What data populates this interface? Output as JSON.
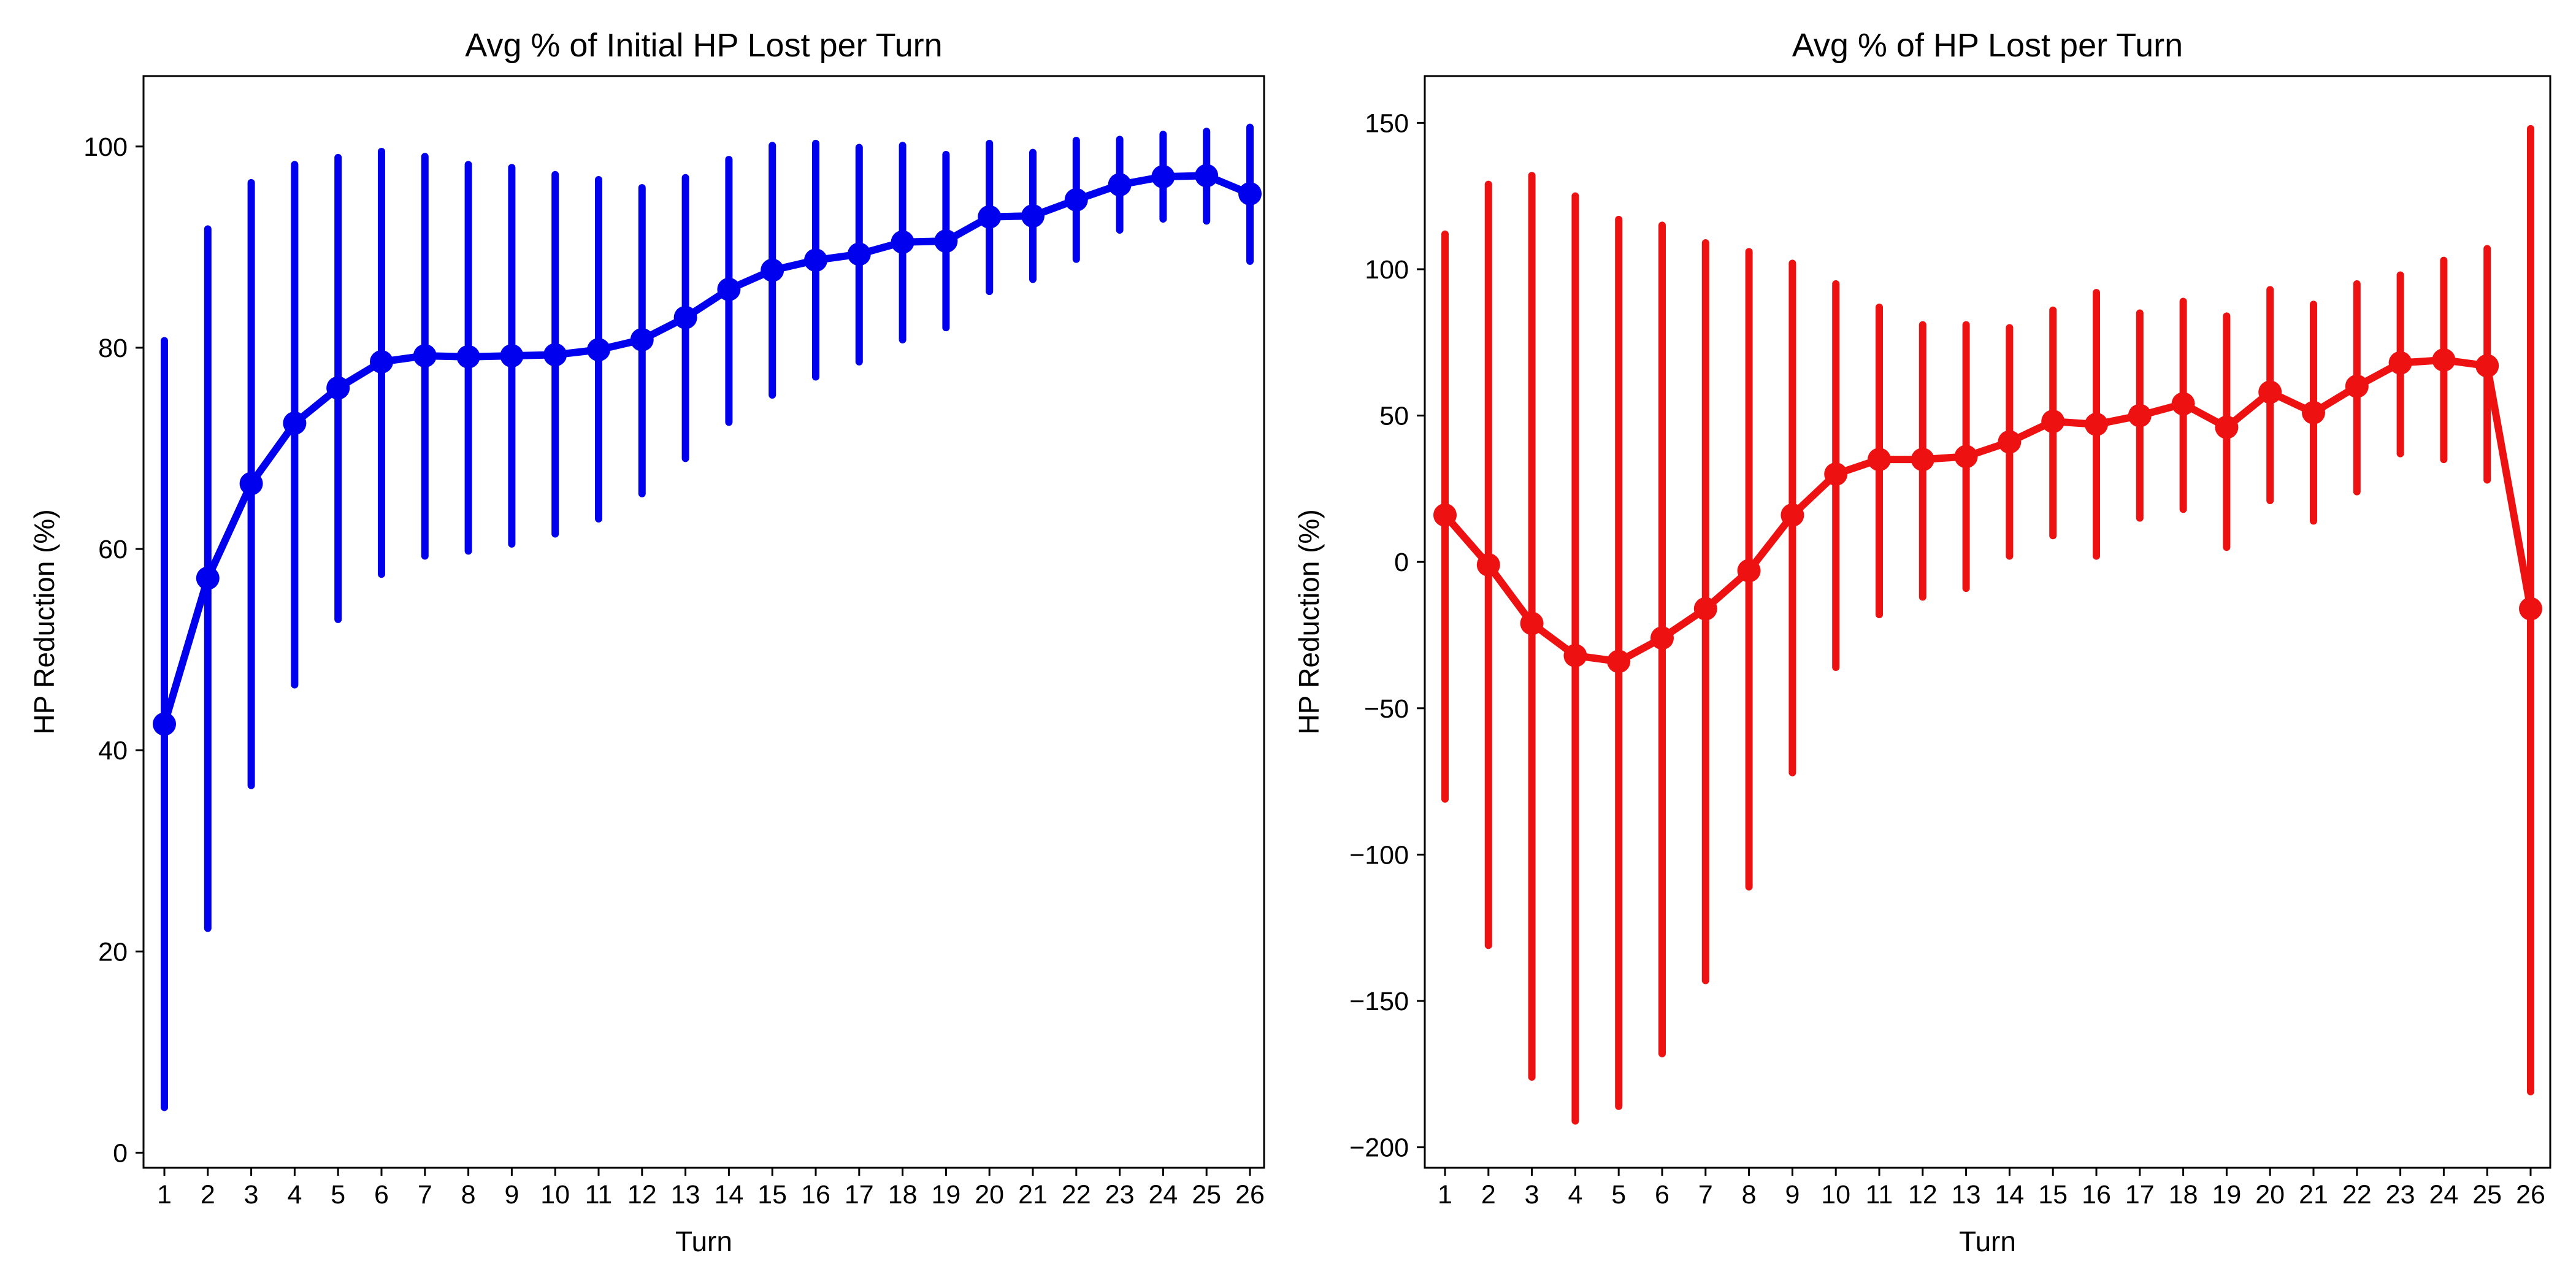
{
  "chart_data": [
    {
      "type": "line",
      "title": "Avg % of Initial HP Lost per Turn",
      "xlabel": "Turn",
      "ylabel": "HP Reduction (%)",
      "ylim": [
        -1.5,
        107
      ],
      "yticks": [
        0,
        20,
        40,
        60,
        80,
        100
      ],
      "grid": false,
      "color": "#0000ee",
      "categories": [
        "1",
        "2",
        "3",
        "4",
        "5",
        "6",
        "7",
        "8",
        "9",
        "10",
        "11",
        "12",
        "13",
        "14",
        "15",
        "16",
        "17",
        "18",
        "19",
        "20",
        "21",
        "22",
        "23",
        "24",
        "25",
        "26"
      ],
      "series": [
        {
          "values": [
            42.6,
            57.1,
            66.5,
            72.5,
            76.0,
            78.6,
            79.2,
            79.1,
            79.2,
            79.3,
            79.8,
            80.8,
            83.0,
            85.8,
            87.7,
            88.7,
            89.3,
            90.5,
            90.6,
            93.0,
            93.1,
            94.7,
            96.2,
            97.0,
            97.1,
            95.3
          ],
          "lower": [
            4.5,
            22.3,
            36.5,
            46.5,
            53.0,
            57.5,
            59.3,
            59.8,
            60.5,
            61.5,
            63.0,
            65.5,
            69.0,
            72.6,
            75.3,
            77.1,
            78.6,
            80.8,
            82.0,
            85.6,
            86.8,
            88.8,
            91.7,
            92.8,
            92.6,
            88.6
          ],
          "upper": [
            80.7,
            91.8,
            96.4,
            98.2,
            98.9,
            99.5,
            99.0,
            98.2,
            97.9,
            97.2,
            96.7,
            95.9,
            96.9,
            98.7,
            100.1,
            100.3,
            99.9,
            100.1,
            99.2,
            100.3,
            99.4,
            100.6,
            100.7,
            101.2,
            101.5,
            101.9
          ]
        }
      ]
    },
    {
      "type": "line",
      "title": "Avg % of HP Lost per Turn",
      "xlabel": "Turn",
      "ylabel": "HP Reduction (%)",
      "ylim": [
        -207,
        166
      ],
      "yticks": [
        -200,
        -150,
        -100,
        -50,
        0,
        50,
        100,
        150
      ],
      "grid": false,
      "color": "#ee1111",
      "categories": [
        "1",
        "2",
        "3",
        "4",
        "5",
        "6",
        "7",
        "8",
        "9",
        "10",
        "11",
        "12",
        "13",
        "14",
        "15",
        "16",
        "17",
        "18",
        "19",
        "20",
        "21",
        "22",
        "23",
        "24",
        "25",
        "26"
      ],
      "series": [
        {
          "values": [
            16,
            -1,
            -21,
            -32,
            -34,
            -26,
            -16,
            -3,
            16,
            30,
            35,
            35,
            36,
            41,
            48,
            47,
            50,
            54,
            46,
            58,
            51,
            60,
            68,
            69,
            67,
            -16
          ],
          "lower": [
            -81,
            -131,
            -176,
            -191,
            -186,
            -168,
            -143,
            -111,
            -72,
            -36,
            -18,
            -12,
            -9,
            2,
            9,
            2,
            15,
            18,
            5,
            21,
            14,
            24,
            37,
            35,
            28,
            -181
          ],
          "upper": [
            112,
            129,
            132,
            125,
            117,
            115,
            109,
            106,
            102,
            95,
            87,
            81,
            81,
            80,
            86,
            92,
            85,
            89,
            84,
            93,
            88,
            95,
            98,
            103,
            107,
            148
          ]
        }
      ]
    }
  ]
}
